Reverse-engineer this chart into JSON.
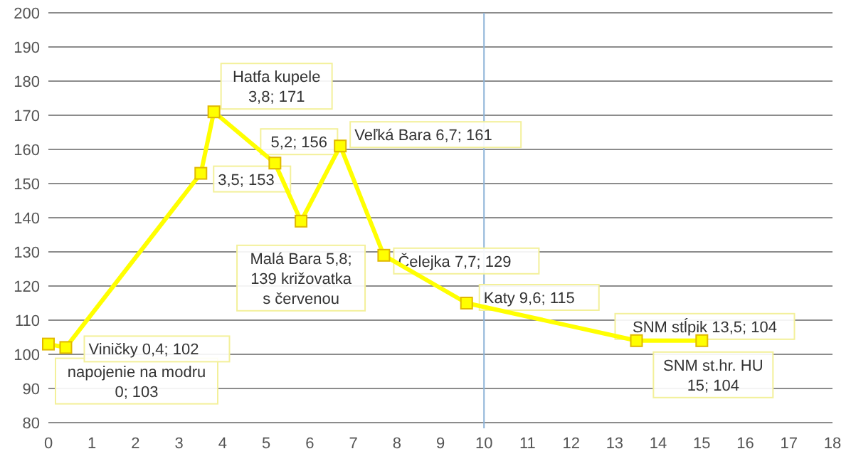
{
  "chart_data": {
    "type": "line",
    "x": [
      0,
      0.4,
      3.5,
      3.8,
      5.2,
      5.8,
      6.7,
      7.7,
      9.6,
      13.5,
      15
    ],
    "series": [
      {
        "color": "#ffff00",
        "values": [
          103,
          102,
          153,
          171,
          156,
          139,
          161,
          129,
          115,
          104,
          104
        ],
        "value_labels": [
          "napojenie na modru 0; 103",
          "Viničky 0,4; 102",
          "3,5; 153",
          "Hatfa kupele 3,8; 171",
          "5,2; 156",
          "Malá Bara 5,8; 139 križovatka s červenou",
          "Veľká Bara 6,7; 161",
          "Čelejka 7,7; 129",
          "Katy 9,6; 115",
          "SNM stĺpik 13,5; 104",
          "SNM st.hr. HU 15; 104"
        ]
      }
    ],
    "xlim": [
      0,
      18
    ],
    "xticks": [
      0,
      1,
      2,
      3,
      4,
      5,
      6,
      7,
      8,
      9,
      10,
      11,
      12,
      13,
      14,
      15,
      16,
      17,
      18
    ],
    "ylim": [
      80,
      200
    ],
    "yticks": [
      80,
      90,
      100,
      110,
      120,
      130,
      140,
      150,
      160,
      170,
      180,
      190,
      200
    ],
    "grid": "y",
    "marker": "square",
    "line_style": "solid",
    "ref_lines": [
      {
        "axis": "x",
        "value": 10,
        "color": "#8fb4d8"
      }
    ]
  }
}
